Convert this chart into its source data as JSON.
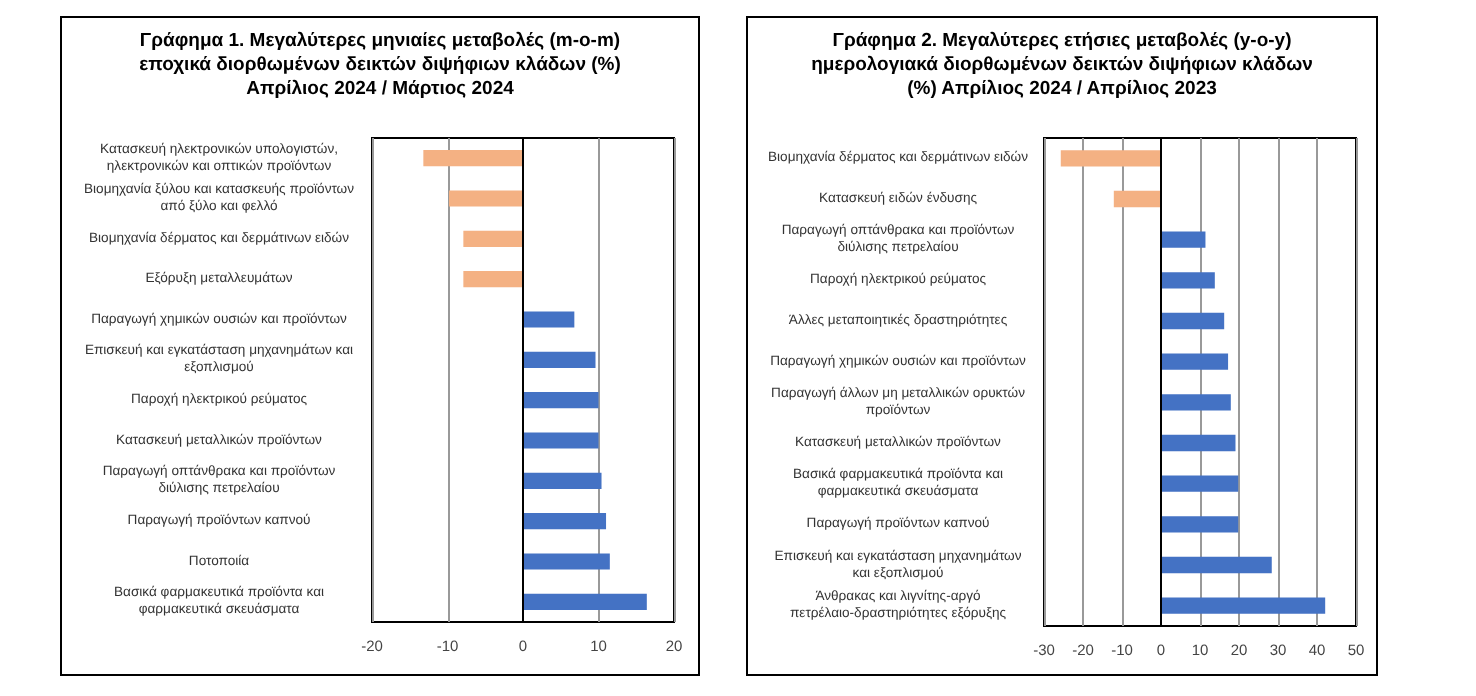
{
  "chart_data": [
    {
      "type": "bar",
      "orientation": "horizontal",
      "title": "Γράφημα 1. Μεγαλύτερες μηνιαίες μεταβολές (m-o-m) εποχικά διορθωμένων δεικτών διψήφιων κλάδων (%) Απρίλιος 2024 / Μάρτιος  2024",
      "categories": [
        "Κατασκευή ηλεκτρονικών υπολογιστών, ηλεκτρονικών και οπτικών προϊόντων",
        "Βιομηχανία ξύλου και κατασκευής προϊόντων από ξύλο και φελλό",
        "Βιομηχανία δέρματος και δερμάτινων ειδών",
        "Εξόρυξη μεταλλευμάτων",
        "Παραγωγή χημικών ουσιών και προϊόντων",
        "Επισκευή και εγκατάσταση μηχανημάτων και εξοπλισμού",
        "Παροχή ηλεκτρικού ρεύματος",
        "Κατασκευή μεταλλικών προϊόντων",
        "Παραγωγή οπτάνθρακα και προϊόντων διύλισης πετρελαίου",
        "Παραγωγή προϊόντων καπνού",
        "Ποτοποιία",
        "Βασικά φαρμακευτικά προϊόντα και φαρμακευτικά σκευάσματα"
      ],
      "values": [
        -13.2,
        -9.8,
        -7.9,
        -7.9,
        6.8,
        9.6,
        10.0,
        10.0,
        10.4,
        11.0,
        11.5,
        16.4
      ],
      "colors": [
        "#f4b183",
        "#f4b183",
        "#f4b183",
        "#f4b183",
        "#4472c4",
        "#4472c4",
        "#4472c4",
        "#4472c4",
        "#4472c4",
        "#4472c4",
        "#4472c4",
        "#4472c4"
      ],
      "xlim": [
        -20,
        20
      ],
      "xticks": [
        -20,
        -10,
        0,
        10,
        20
      ],
      "grid": "x"
    },
    {
      "type": "bar",
      "orientation": "horizontal",
      "title": "Γράφημα 2. Μεγαλύτερες ετήσιες μεταβολές (y-o-y) ημερολογιακά διορθωμένων δεικτών διψήφιων κλάδων (%) Απρίλιος 2024 / Απρίλιος  2023",
      "categories": [
        "Βιομηχανία δέρματος και δερμάτινων ειδών",
        "Κατασκευή ειδών ένδυσης",
        "Παραγωγή οπτάνθρακα και προϊόντων διύλισης πετρελαίου",
        "Παροχή ηλεκτρικού ρεύματος",
        "Άλλες μεταποιητικές δραστηριότητες",
        "Παραγωγή χημικών ουσιών και προϊόντων",
        "Παραγωγή άλλων μη μεταλλικών ορυκτών προϊόντων",
        "Κατασκευή μεταλλικών προϊόντων",
        "Βασικά φαρμακευτικά προϊόντα και φαρμακευτικά σκευάσματα",
        "Παραγωγή προϊόντων καπνού",
        "Επισκευή και εγκατάσταση μηχανημάτων και εξοπλισμού",
        "Άνθρακας και λιγνίτης-αργό πετρέλαιο-δραστηριότητες εξόρυξης"
      ],
      "values": [
        -25.7,
        -12.1,
        11.4,
        13.8,
        16.2,
        17.2,
        17.9,
        19.1,
        19.8,
        19.8,
        28.4,
        42.1
      ],
      "colors": [
        "#f4b183",
        "#f4b183",
        "#4472c4",
        "#4472c4",
        "#4472c4",
        "#4472c4",
        "#4472c4",
        "#4472c4",
        "#4472c4",
        "#4472c4",
        "#4472c4",
        "#4472c4"
      ],
      "xlim": [
        -30,
        50
      ],
      "xticks": [
        -30,
        -20,
        -10,
        0,
        10,
        20,
        30,
        40,
        50
      ],
      "grid": "x"
    }
  ]
}
